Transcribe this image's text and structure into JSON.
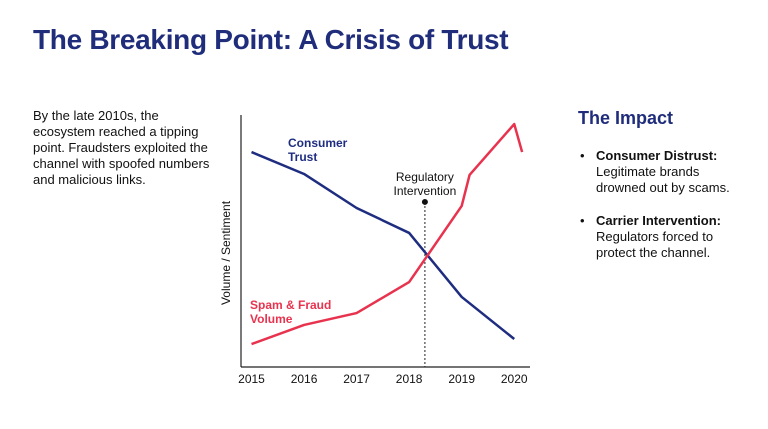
{
  "title": "The Breaking Point: A Crisis of Trust",
  "intro": "By the late 2010s, the ecosystem reached a tipping point. Fraudsters exploited the channel with spoofed numbers and malicious links.",
  "impact": {
    "heading": "The Impact",
    "bullets": [
      {
        "label": "Consumer Distrust:",
        "text": "Legitimate brands drowned out by scams."
      },
      {
        "label": "Carrier Intervention:",
        "text": "Regulators forced to protect the channel."
      }
    ]
  },
  "chart_data": {
    "type": "line",
    "ylabel": "Volume / Sentiment",
    "xlim": [
      2014.8,
      2020.3
    ],
    "xticks": [
      2015,
      2016,
      2017,
      2018,
      2019,
      2020
    ],
    "ylim": [
      0,
      100
    ],
    "series": [
      {
        "name": "Consumer Trust",
        "color": "#1f2d80",
        "x": [
          2015,
          2016,
          2017,
          2018,
          2019,
          2020
        ],
        "values": [
          85.3,
          76.6,
          63.1,
          53.2,
          27.8,
          11.1
        ]
      },
      {
        "name": "Spam & Fraud Volume",
        "color": "#e8334f",
        "x": [
          2015,
          2016,
          2017,
          2018,
          2019,
          2019.15,
          2020,
          2020.15
        ],
        "values": [
          9.1,
          16.7,
          21.4,
          33.7,
          63.9,
          76.2,
          96.4,
          85.3
        ]
      }
    ],
    "annotation": {
      "text": "Regulatory Intervention",
      "x": 2018.3,
      "y": 65.5
    }
  }
}
